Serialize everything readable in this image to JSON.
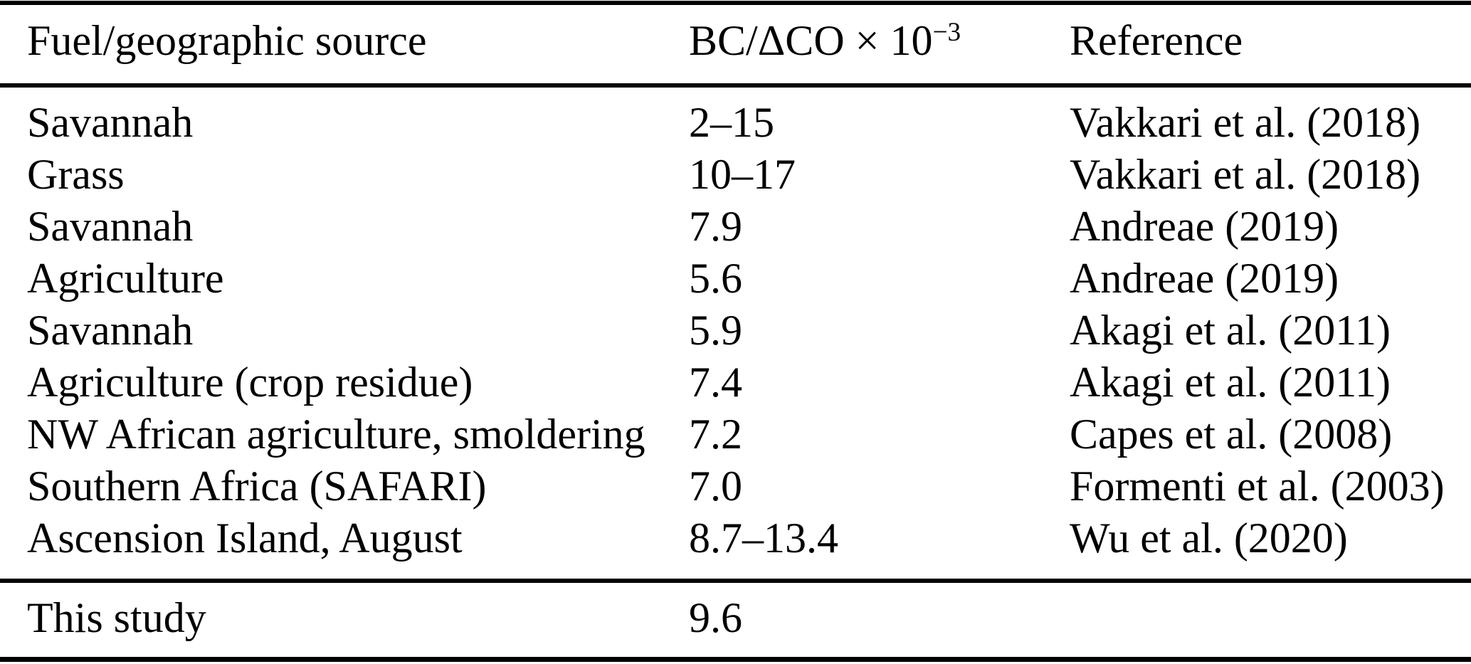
{
  "table": {
    "columns": {
      "source": "Fuel/geographic source",
      "ratio_base": "BC/ΔCO × 10",
      "ratio_exponent": "−3",
      "reference": "Reference"
    },
    "rows": [
      {
        "source": "Savannah",
        "ratio": "2–15",
        "reference": "Vakkari et al. (2018)"
      },
      {
        "source": "Grass",
        "ratio": "10–17",
        "reference": "Vakkari et al. (2018)"
      },
      {
        "source": "Savannah",
        "ratio": "7.9",
        "reference": "Andreae (2019)"
      },
      {
        "source": "Agriculture",
        "ratio": "5.6",
        "reference": "Andreae (2019)"
      },
      {
        "source": "Savannah",
        "ratio": "5.9",
        "reference": "Akagi et al. (2011)"
      },
      {
        "source": "Agriculture (crop residue)",
        "ratio": "7.4",
        "reference": "Akagi et al. (2011)"
      },
      {
        "source": "NW African agriculture, smoldering",
        "ratio": "7.2",
        "reference": "Capes et al. (2008)"
      },
      {
        "source": "Southern Africa (SAFARI)",
        "ratio": "7.0",
        "reference": "Formenti et al. (2003)"
      },
      {
        "source": "Ascension Island, August",
        "ratio": "8.7–13.4",
        "reference": "Wu et al. (2020)"
      }
    ],
    "summary_row": {
      "source": "This study",
      "ratio": "9.6",
      "reference": ""
    }
  },
  "colors": {
    "text": "#000000",
    "background": "#ffffff",
    "rule": "#000000"
  }
}
